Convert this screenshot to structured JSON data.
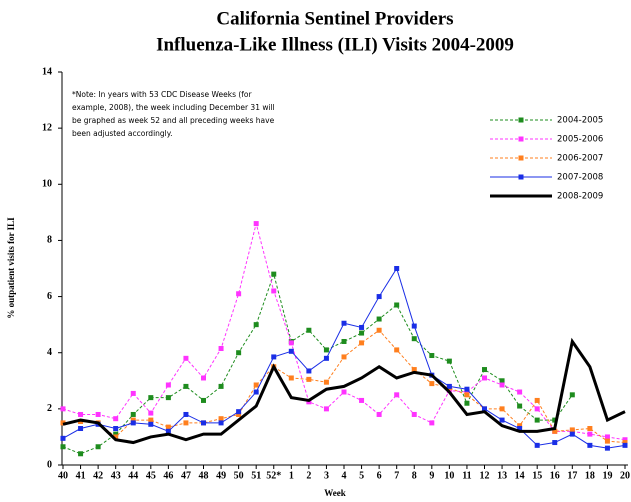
{
  "chart_data": {
    "type": "line",
    "title": [
      "California Sentinel Providers",
      "Influenza-Like Illness (ILI) Visits 2004-2009"
    ],
    "note": [
      "*Note: In years with 53 CDC Disease Weeks (for",
      "example, 2008), the week including December 31 will",
      "be graphed as week 52 and all preceding weeks have",
      "been adjusted accordingly."
    ],
    "x_label": "Week",
    "y_label": "% outpatient visits for ILI",
    "categories": [
      "40",
      "41",
      "42",
      "43",
      "44",
      "45",
      "46",
      "47",
      "48",
      "49",
      "50",
      "51",
      "52*",
      "1",
      "2",
      "3",
      "4",
      "5",
      "6",
      "7",
      "8",
      "9",
      "10",
      "11",
      "12",
      "13",
      "14",
      "15",
      "16",
      "17",
      "18",
      "19",
      "20"
    ],
    "ylim": [
      0,
      14
    ],
    "yticks": [
      0,
      2,
      4,
      6,
      8,
      10,
      12,
      14
    ],
    "series": [
      {
        "name": "2004-2005",
        "color": "#1e8c1e",
        "dashed": true,
        "markers": true,
        "width": 1,
        "values": [
          0.65,
          0.4,
          0.65,
          1.1,
          1.8,
          2.4,
          2.4,
          2.8,
          2.3,
          2.8,
          4.0,
          5.0,
          6.8,
          4.4,
          4.8,
          4.1,
          4.4,
          4.7,
          5.2,
          5.7,
          4.5,
          3.9,
          3.7,
          2.2,
          3.4,
          3.0,
          2.1,
          1.6,
          1.6,
          2.5,
          null,
          null,
          null
        ]
      },
      {
        "name": "2005-2006",
        "color": "#ff33ff",
        "dashed": true,
        "markers": true,
        "width": 1,
        "values": [
          2.0,
          1.8,
          1.8,
          1.65,
          2.55,
          1.85,
          2.85,
          3.8,
          3.1,
          4.15,
          6.1,
          8.6,
          6.2,
          4.35,
          2.25,
          2.0,
          2.6,
          2.3,
          1.8,
          2.5,
          1.8,
          1.5,
          2.65,
          2.6,
          3.1,
          2.85,
          2.6,
          2.0,
          1.2,
          1.2,
          1.1,
          1.0,
          0.9
        ]
      },
      {
        "name": "2006-2007",
        "color": "#ff7f1e",
        "dashed": true,
        "markers": true,
        "width": 1,
        "values": [
          1.5,
          1.55,
          1.5,
          1.0,
          1.6,
          1.6,
          1.35,
          1.5,
          1.5,
          1.65,
          1.8,
          2.85,
          3.5,
          3.1,
          3.05,
          2.95,
          3.85,
          4.35,
          4.8,
          4.1,
          3.4,
          2.9,
          2.75,
          2.5,
          2.0,
          2.0,
          1.4,
          2.3,
          1.2,
          1.25,
          1.3,
          0.85,
          0.8
        ]
      },
      {
        "name": "2007-2008",
        "color": "#1a2ee6",
        "dashed": false,
        "markers": true,
        "width": 1,
        "values": [
          0.95,
          1.3,
          1.45,
          1.3,
          1.5,
          1.45,
          1.2,
          1.8,
          1.5,
          1.5,
          1.9,
          2.6,
          3.85,
          4.05,
          3.35,
          3.8,
          5.05,
          4.9,
          6.0,
          7.0,
          4.95,
          3.2,
          2.8,
          2.7,
          2.0,
          1.6,
          1.3,
          0.7,
          0.8,
          1.1,
          0.7,
          0.6,
          0.7
        ]
      },
      {
        "name": "2008-2009",
        "color": "#000000",
        "dashed": false,
        "markers": false,
        "width": 3,
        "values": [
          1.45,
          1.6,
          1.5,
          0.9,
          0.8,
          1.0,
          1.1,
          0.9,
          1.1,
          1.1,
          1.6,
          2.1,
          3.5,
          2.4,
          2.3,
          2.7,
          2.8,
          3.1,
          3.5,
          3.1,
          3.3,
          3.2,
          2.6,
          1.8,
          1.9,
          1.4,
          1.2,
          1.2,
          1.3,
          4.4,
          3.5,
          1.6,
          1.9
        ]
      }
    ]
  }
}
